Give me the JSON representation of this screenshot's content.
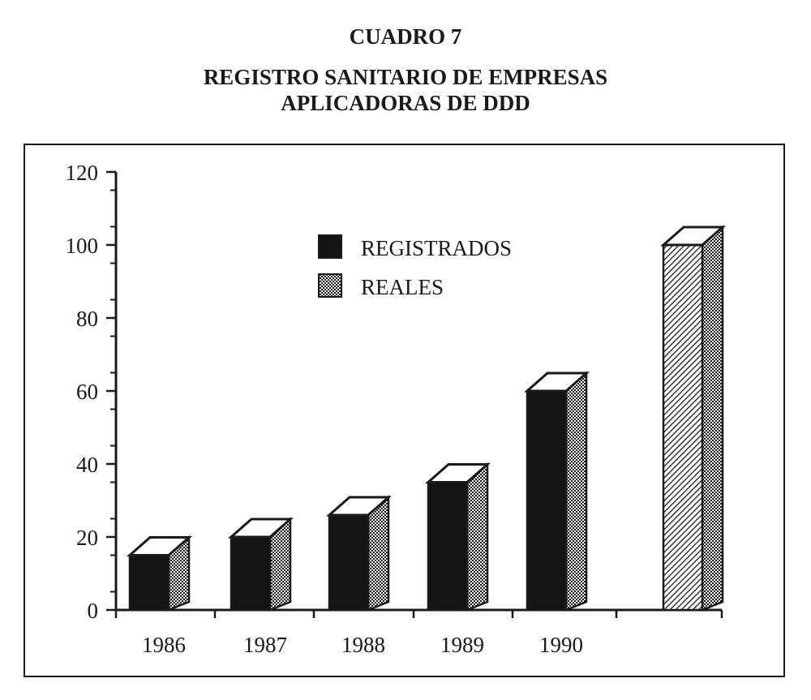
{
  "header": {
    "caption": "CUADRO 7",
    "title_line1": "REGISTRO SANITARIO DE EMPRESAS",
    "title_line2": "APLICADORAS DE DDD"
  },
  "colors": {
    "registrados": "#141414",
    "reales_pattern": "#1a1a1a",
    "top_face": "#ffffff",
    "frame": "#1a1a1a"
  },
  "chart_data": {
    "type": "bar",
    "title": "REGISTRO SANITARIO DE EMPRESAS APLICADORAS DE DDD",
    "categories": [
      "1986",
      "1987",
      "1988",
      "1989",
      "1990",
      ""
    ],
    "series": [
      {
        "name": "REGISTRADOS",
        "values": [
          15,
          20,
          26,
          35,
          60,
          null
        ]
      },
      {
        "name": "REALES",
        "values": [
          null,
          null,
          null,
          null,
          null,
          100
        ]
      }
    ],
    "ylim": [
      0,
      120
    ],
    "yticks": [
      "0",
      "20",
      "40",
      "60",
      "80",
      "100",
      "120"
    ],
    "legend_position": "top-center",
    "grid": false
  }
}
